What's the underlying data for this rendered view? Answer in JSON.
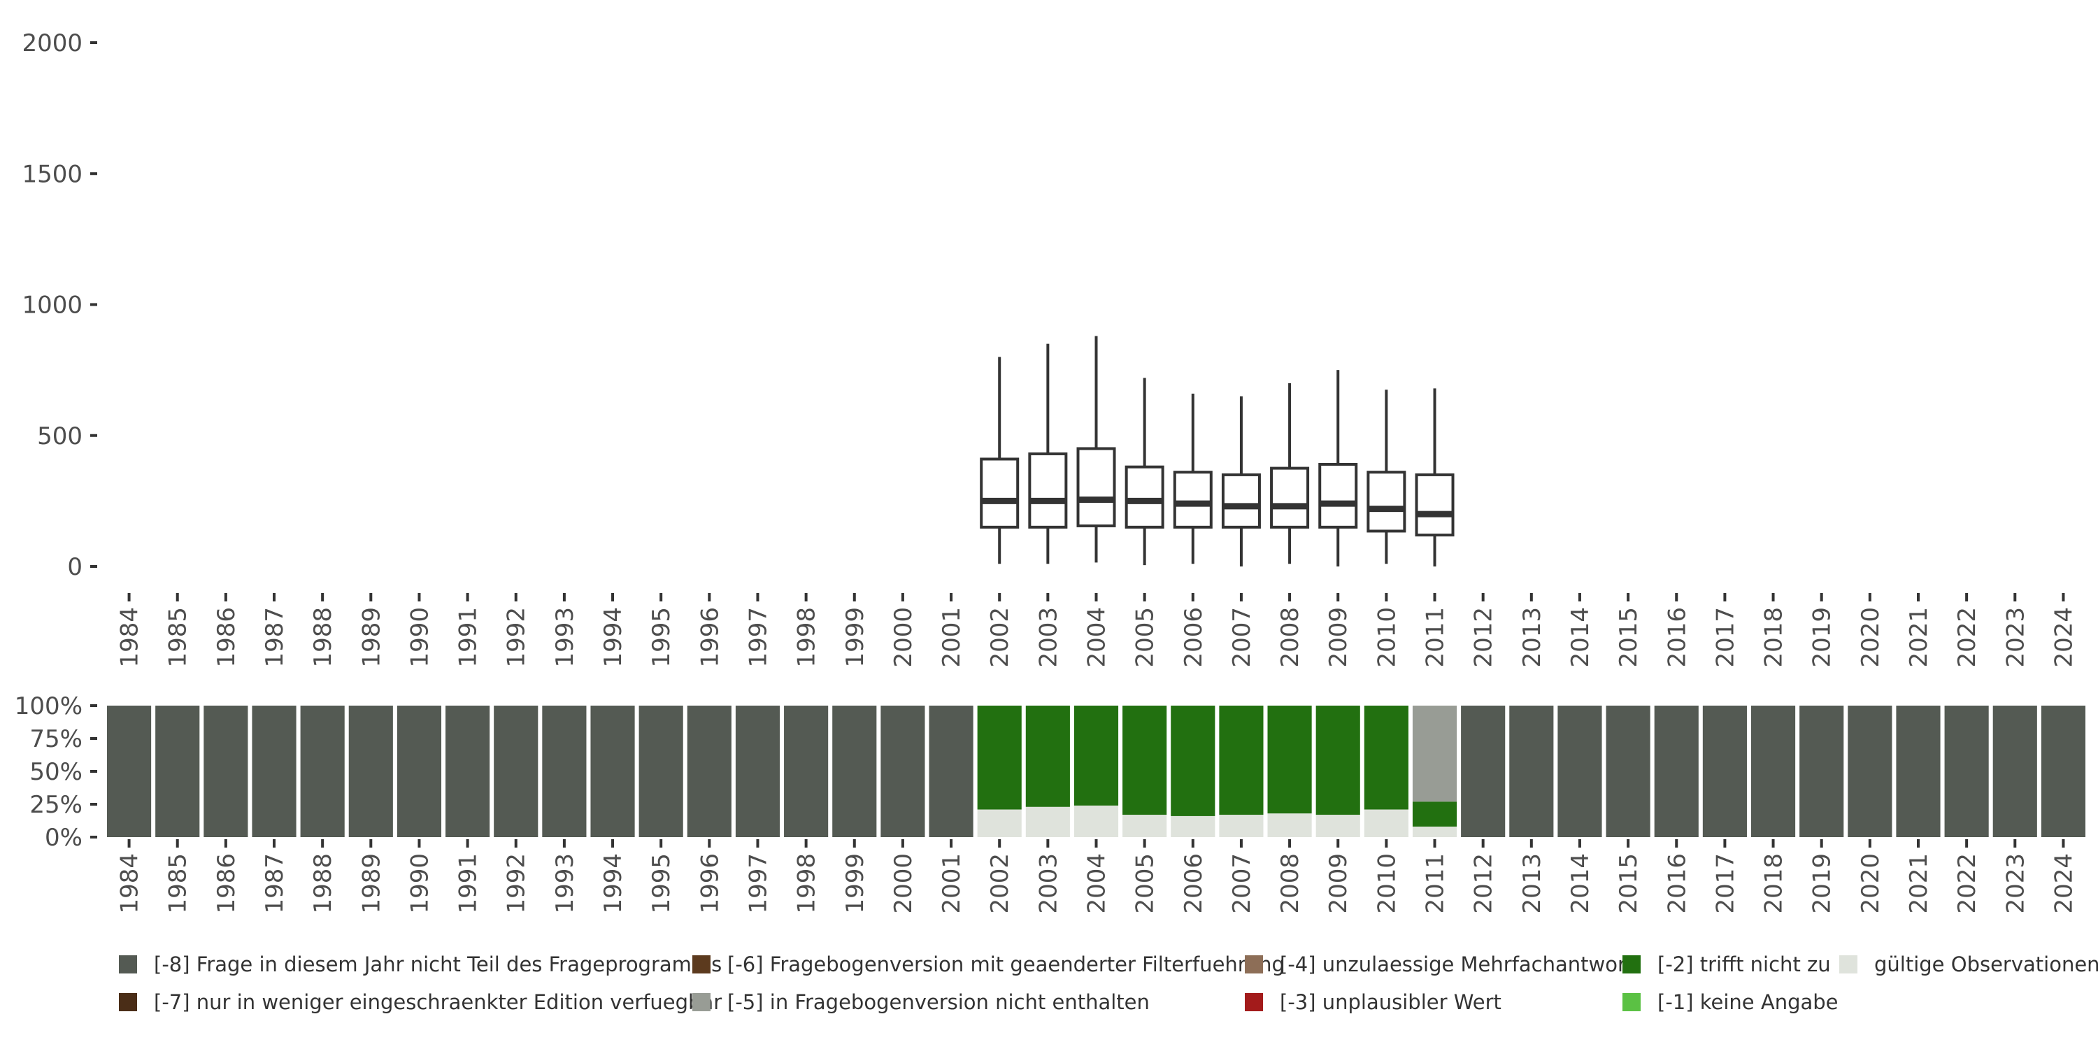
{
  "chart_data": [
    {
      "type": "box",
      "y_ticks": [
        0,
        500,
        1000,
        1500,
        2000
      ],
      "ylim": [
        0,
        2000
      ],
      "categories": [
        "1984",
        "1985",
        "1986",
        "1987",
        "1988",
        "1989",
        "1990",
        "1991",
        "1992",
        "1993",
        "1994",
        "1995",
        "1996",
        "1997",
        "1998",
        "1999",
        "2000",
        "2001",
        "2002",
        "2003",
        "2004",
        "2005",
        "2006",
        "2007",
        "2008",
        "2009",
        "2010",
        "2011",
        "2012",
        "2013",
        "2014",
        "2015",
        "2016",
        "2017",
        "2018",
        "2019",
        "2020",
        "2021",
        "2022",
        "2023",
        "2024"
      ],
      "boxes": [
        {
          "year": "2002",
          "min": 10,
          "q1": 150,
          "median": 250,
          "q3": 410,
          "max": 800
        },
        {
          "year": "2003",
          "min": 10,
          "q1": 150,
          "median": 250,
          "q3": 430,
          "max": 850
        },
        {
          "year": "2004",
          "min": 15,
          "q1": 155,
          "median": 255,
          "q3": 450,
          "max": 880
        },
        {
          "year": "2005",
          "min": 5,
          "q1": 150,
          "median": 250,
          "q3": 380,
          "max": 720
        },
        {
          "year": "2006",
          "min": 10,
          "q1": 150,
          "median": 240,
          "q3": 360,
          "max": 660
        },
        {
          "year": "2007",
          "min": 0,
          "q1": 150,
          "median": 230,
          "q3": 350,
          "max": 650
        },
        {
          "year": "2008",
          "min": 10,
          "q1": 150,
          "median": 230,
          "q3": 375,
          "max": 700
        },
        {
          "year": "2009",
          "min": 0,
          "q1": 150,
          "median": 240,
          "q3": 390,
          "max": 750
        },
        {
          "year": "2010",
          "min": 10,
          "q1": 135,
          "median": 220,
          "q3": 360,
          "max": 675
        },
        {
          "year": "2011",
          "min": 0,
          "q1": 120,
          "median": 200,
          "q3": 350,
          "max": 680
        }
      ]
    },
    {
      "type": "stacked-bar",
      "y_ticks": [
        "0%",
        "25%",
        "50%",
        "75%",
        "100%"
      ],
      "ylim": [
        0,
        100
      ],
      "categories": [
        "1984",
        "1985",
        "1986",
        "1987",
        "1988",
        "1989",
        "1990",
        "1991",
        "1992",
        "1993",
        "1994",
        "1995",
        "1996",
        "1997",
        "1998",
        "1999",
        "2000",
        "2001",
        "2002",
        "2003",
        "2004",
        "2005",
        "2006",
        "2007",
        "2008",
        "2009",
        "2010",
        "2011",
        "2012",
        "2013",
        "2014",
        "2015",
        "2016",
        "2017",
        "2018",
        "2019",
        "2020",
        "2021",
        "2022",
        "2023",
        "2024"
      ],
      "series": [
        {
          "key": "valid",
          "color": "#dfe3dc",
          "values": [
            0,
            0,
            0,
            0,
            0,
            0,
            0,
            0,
            0,
            0,
            0,
            0,
            0,
            0,
            0,
            0,
            0,
            0,
            21,
            23,
            24,
            17,
            16,
            17,
            18,
            17,
            21,
            8,
            0,
            0,
            0,
            0,
            0,
            0,
            0,
            0,
            0,
            0,
            0,
            0,
            0
          ]
        },
        {
          "key": "neg1",
          "color": "#5bc144",
          "values": [
            0,
            0,
            0,
            0,
            0,
            0,
            0,
            0,
            0,
            0,
            0,
            0,
            0,
            0,
            0,
            0,
            0,
            0,
            0,
            0,
            0,
            0,
            0,
            0,
            0,
            0,
            0,
            0,
            0,
            0,
            0,
            0,
            0,
            0,
            0,
            0,
            0,
            0,
            0,
            0,
            0
          ]
        },
        {
          "key": "neg2",
          "color": "#227010",
          "values": [
            0,
            0,
            0,
            0,
            0,
            0,
            0,
            0,
            0,
            0,
            0,
            0,
            0,
            0,
            0,
            0,
            0,
            0,
            79,
            77,
            76,
            83,
            84,
            83,
            82,
            83,
            79,
            19,
            0,
            0,
            0,
            0,
            0,
            0,
            0,
            0,
            0,
            0,
            0,
            0,
            0
          ]
        },
        {
          "key": "neg3",
          "color": "#a31b1b",
          "values": [
            0,
            0,
            0,
            0,
            0,
            0,
            0,
            0,
            0,
            0,
            0,
            0,
            0,
            0,
            0,
            0,
            0,
            0,
            0,
            0,
            0,
            0,
            0,
            0,
            0,
            0,
            0,
            0,
            0,
            0,
            0,
            0,
            0,
            0,
            0,
            0,
            0,
            0,
            0,
            0,
            0
          ]
        },
        {
          "key": "neg4",
          "color": "#8d6e57",
          "values": [
            0,
            0,
            0,
            0,
            0,
            0,
            0,
            0,
            0,
            0,
            0,
            0,
            0,
            0,
            0,
            0,
            0,
            0,
            0,
            0,
            0,
            0,
            0,
            0,
            0,
            0,
            0,
            0,
            0,
            0,
            0,
            0,
            0,
            0,
            0,
            0,
            0,
            0,
            0,
            0,
            0
          ]
        },
        {
          "key": "neg5",
          "color": "#989c95",
          "values": [
            0,
            0,
            0,
            0,
            0,
            0,
            0,
            0,
            0,
            0,
            0,
            0,
            0,
            0,
            0,
            0,
            0,
            0,
            0,
            0,
            0,
            0,
            0,
            0,
            0,
            0,
            0,
            73,
            0,
            0,
            0,
            0,
            0,
            0,
            0,
            0,
            0,
            0,
            0,
            0,
            0
          ]
        },
        {
          "key": "neg6",
          "color": "#5c3a1e",
          "values": [
            0,
            0,
            0,
            0,
            0,
            0,
            0,
            0,
            0,
            0,
            0,
            0,
            0,
            0,
            0,
            0,
            0,
            0,
            0,
            0,
            0,
            0,
            0,
            0,
            0,
            0,
            0,
            0,
            0,
            0,
            0,
            0,
            0,
            0,
            0,
            0,
            0,
            0,
            0,
            0,
            0
          ]
        },
        {
          "key": "neg7",
          "color": "#4a2d17",
          "values": [
            0,
            0,
            0,
            0,
            0,
            0,
            0,
            0,
            0,
            0,
            0,
            0,
            0,
            0,
            0,
            0,
            0,
            0,
            0,
            0,
            0,
            0,
            0,
            0,
            0,
            0,
            0,
            0,
            0,
            0,
            0,
            0,
            0,
            0,
            0,
            0,
            0,
            0,
            0,
            0,
            0
          ]
        },
        {
          "key": "neg8",
          "color": "#545a53",
          "values": [
            100,
            100,
            100,
            100,
            100,
            100,
            100,
            100,
            100,
            100,
            100,
            100,
            100,
            100,
            100,
            100,
            100,
            100,
            0,
            0,
            0,
            0,
            0,
            0,
            0,
            0,
            0,
            0,
            100,
            100,
            100,
            100,
            100,
            100,
            100,
            100,
            100,
            100,
            100,
            100,
            100
          ]
        }
      ]
    }
  ],
  "legend": [
    {
      "label": "[-8] Frage in diesem Jahr nicht Teil des Frageprogramms",
      "color": "#545a53"
    },
    {
      "label": "[-6] Fragebogenversion mit geaenderter Filterfuehrung",
      "color": "#5c3a1e"
    },
    {
      "label": "[-4] unzulaessige Mehrfachantwort",
      "color": "#8d6e57"
    },
    {
      "label": "[-2] trifft nicht zu",
      "color": "#227010"
    },
    {
      "label": "gültige Observationen",
      "color": "#dfe3dc"
    },
    {
      "label": "[-7] nur in weniger eingeschraenkter Edition verfuegbar",
      "color": "#4a2d17"
    },
    {
      "label": "[-5] in Fragebogenversion nicht enthalten",
      "color": "#989c95"
    },
    {
      "label": "[-3] unplausibler Wert",
      "color": "#a31b1b"
    },
    {
      "label": "[-1] keine Angabe",
      "color": "#5bc144"
    }
  ]
}
